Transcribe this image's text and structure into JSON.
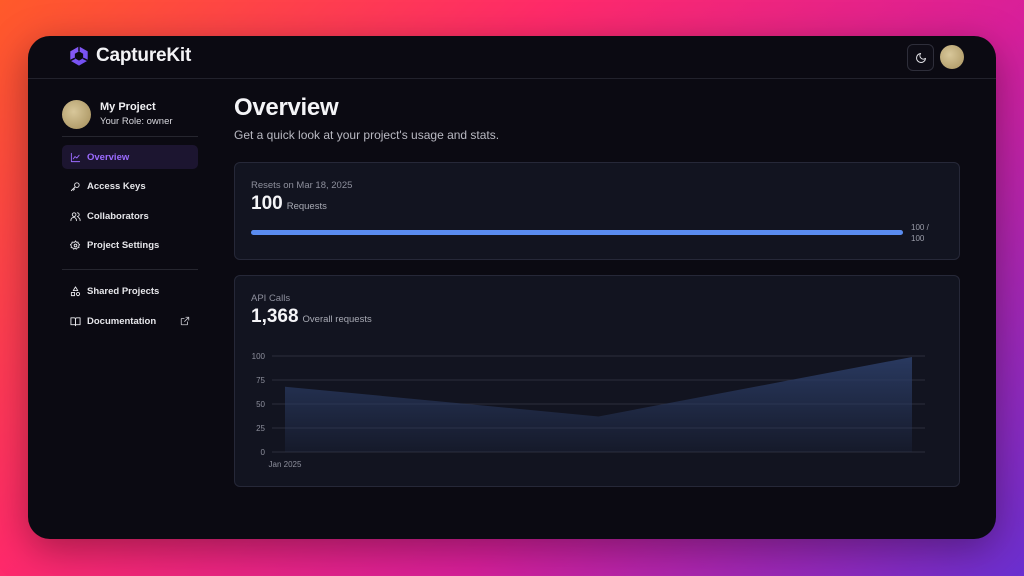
{
  "app": {
    "name": "CaptureKit"
  },
  "sidebar": {
    "project_name": "My Project",
    "project_role": "Your Role: owner",
    "items": [
      {
        "label": "Overview",
        "icon": "chart-line-icon",
        "active": true
      },
      {
        "label": "Access Keys",
        "icon": "key-icon",
        "active": false
      },
      {
        "label": "Collaborators",
        "icon": "users-icon",
        "active": false
      },
      {
        "label": "Project Settings",
        "icon": "gear-icon",
        "active": false
      }
    ],
    "secondary_items": [
      {
        "label": "Shared Projects",
        "icon": "shapes-icon"
      },
      {
        "label": "Documentation",
        "icon": "book-icon",
        "external": true
      }
    ]
  },
  "main": {
    "title": "Overview",
    "subtitle": "Get a quick look at your project's usage and stats."
  },
  "usage_card": {
    "label": "Resets on Mar 18, 2025",
    "value": "100",
    "unit": "Requests",
    "progress_used": "100 /",
    "progress_total": "100",
    "progress_fraction": 1.0
  },
  "api_card": {
    "label": "API Calls",
    "value": "1,368",
    "unit": "Overall requests"
  },
  "chart_data": {
    "type": "area",
    "x": [
      "Jan 2025",
      "",
      ""
    ],
    "tick_labels_x": [
      "Jan 2025"
    ],
    "values": [
      68,
      37,
      99
    ],
    "ylim": [
      0,
      100
    ],
    "yticks": [
      0,
      25,
      50,
      75,
      100
    ],
    "grid": true,
    "color": "#2a3b63"
  },
  "colors": {
    "accent": "#9b6bff",
    "progress": "#5a8cf0",
    "background": "#0b0a12",
    "card": "#121420"
  }
}
